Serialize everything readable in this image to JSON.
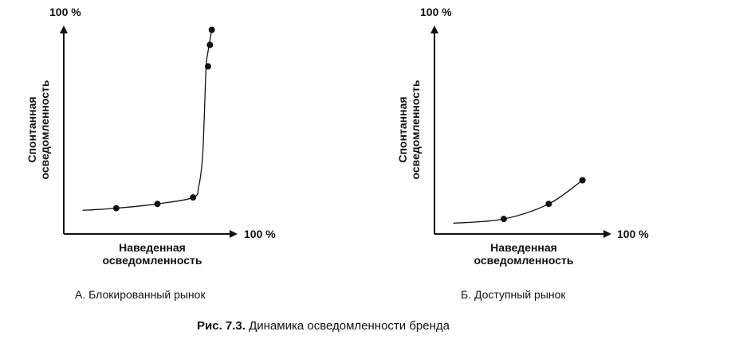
{
  "chart_data": [
    {
      "type": "line",
      "title": "",
      "caption": "А. Блокированный рынок",
      "ylabel": [
        "Спонтанная",
        "осведомленность"
      ],
      "xlabel": [
        "Наведенная",
        "осведомленность"
      ],
      "xmax_label": "100 %",
      "ymax_label": "100 %",
      "xlim": [
        0,
        100
      ],
      "ylim": [
        0,
        100
      ],
      "curve": [
        [
          10,
          11
        ],
        [
          28,
          12
        ],
        [
          50,
          14
        ],
        [
          69,
          17
        ],
        [
          72,
          22
        ],
        [
          74,
          35
        ],
        [
          75,
          55
        ],
        [
          76,
          78
        ],
        [
          77,
          85
        ],
        [
          79,
          95
        ]
      ],
      "points": [
        [
          28,
          12
        ],
        [
          50,
          14
        ],
        [
          69,
          17
        ],
        [
          77,
          78
        ],
        [
          78,
          88
        ],
        [
          79,
          95
        ]
      ]
    },
    {
      "type": "line",
      "title": "",
      "caption": "Б. Доступный рынок",
      "ylabel": [
        "Спонтанная",
        "осведомленность"
      ],
      "xlabel": [
        "Наведенная",
        "осведомленность"
      ],
      "xmax_label": "100 %",
      "ymax_label": "100 %",
      "xlim": [
        0,
        100
      ],
      "ylim": [
        0,
        100
      ],
      "curve": [
        [
          10,
          5
        ],
        [
          37,
          7
        ],
        [
          61,
          14
        ],
        [
          79,
          25
        ]
      ],
      "points": [
        [
          37,
          7
        ],
        [
          61,
          14
        ],
        [
          79,
          25
        ]
      ]
    }
  ],
  "figure_caption": {
    "label": "Рис. 7.3.",
    "text": " Динамика осведомленности бренда"
  }
}
